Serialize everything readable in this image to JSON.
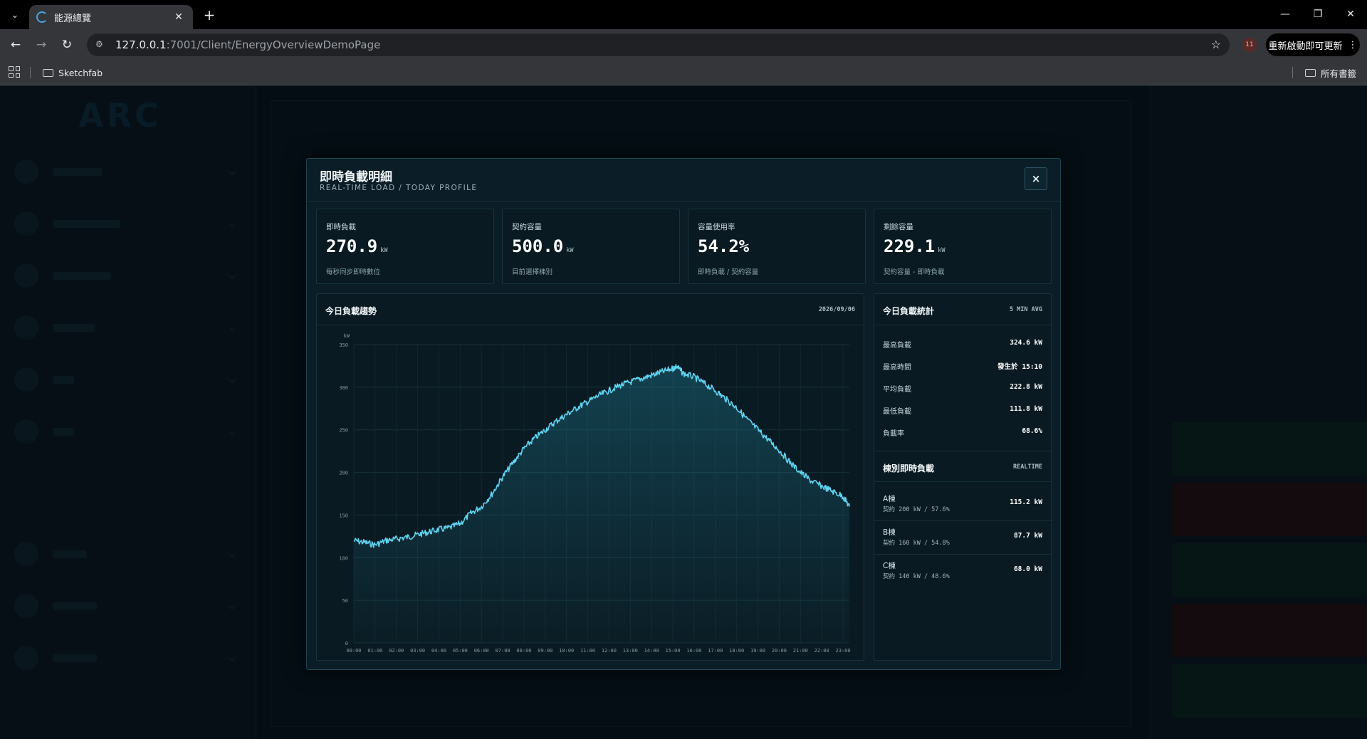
{
  "browser": {
    "tab_title": "能源總覽",
    "url_host": "127.0.0.1",
    "url_path": ":7001/Client/EnergyOverviewDemoPage",
    "update_button": "重新啟動即可更新",
    "extension_badge": "11",
    "bookmarks": [
      {
        "label": "Sketchfab"
      }
    ],
    "all_bookmarks": "所有書籤"
  },
  "modal": {
    "title": "即時負載明細",
    "subtitle": "REAL-TIME LOAD / TODAY PROFILE",
    "close_label": "×",
    "kpis": [
      {
        "label": "即時負載",
        "value": "270.9",
        "unit": "kW",
        "note": "每秒同步即時數位"
      },
      {
        "label": "契約容量",
        "value": "500.0",
        "unit": "kW",
        "note": "目前選擇棟別"
      },
      {
        "label": "容量使用率",
        "value": "54.2%",
        "unit": "",
        "note": "即時負載 / 契約容量"
      },
      {
        "label": "剩餘容量",
        "value": "229.1",
        "unit": "kW",
        "note": "契約容量 - 即時負載"
      }
    ],
    "trend_panel": {
      "title": "今日負載趨勢",
      "date": "2026/09/06"
    },
    "stats_panel": {
      "title": "今日負載統計",
      "tag": "5 MIN AVG",
      "rows": [
        {
          "label": "最高負載",
          "value": "324.6 kW"
        },
        {
          "label": "最高時間",
          "value": "發生於 15:10"
        },
        {
          "label": "平均負載",
          "value": "222.8 kW"
        },
        {
          "label": "最低負載",
          "value": "111.8 kW"
        },
        {
          "label": "負載率",
          "value": "68.6%"
        }
      ]
    },
    "building_panel": {
      "title": "棟別即時負載",
      "tag": "REALTIME",
      "rows": [
        {
          "name": "A棟",
          "contract": "契約 200 kW / 57.6%",
          "value": "115.2 kW"
        },
        {
          "name": "B棟",
          "contract": "契約 160 kW / 54.8%",
          "value": "87.7 kW"
        },
        {
          "name": "C棟",
          "contract": "契約 140 kW / 48.6%",
          "value": "68.0 kW"
        }
      ]
    }
  },
  "colors": {
    "accent": "#5fd4f0",
    "panel": "#0a1a22",
    "border": "#17343f"
  },
  "chart_data": {
    "type": "area",
    "ylabel": "kW",
    "ylim": [
      0,
      350
    ],
    "yticks": [
      0,
      50,
      100,
      150,
      200,
      250,
      300,
      350
    ],
    "xticks": [
      "00:00",
      "01:00",
      "02:00",
      "03:00",
      "04:00",
      "05:00",
      "06:00",
      "07:00",
      "08:00",
      "09:00",
      "10:00",
      "11:00",
      "12:00",
      "13:00",
      "14:00",
      "15:00",
      "16:00",
      "17:00",
      "18:00",
      "19:00",
      "20:00",
      "21:00",
      "22:00",
      "23:00"
    ],
    "x_unit": "hour",
    "grid": true,
    "series": [
      {
        "hours": [
          0,
          0.5,
          1,
          1.5,
          2,
          2.5,
          3,
          3.5,
          4,
          4.5,
          5,
          5.5,
          6,
          6.5,
          7,
          7.5,
          8,
          8.5,
          9,
          9.5,
          10,
          10.5,
          11,
          11.5,
          12,
          12.5,
          13,
          13.5,
          14,
          14.5,
          15,
          15.17,
          15.5,
          16,
          16.5,
          17,
          17.5,
          18,
          18.5,
          19,
          19.5,
          20,
          20.5,
          21,
          21.5,
          22,
          22.5,
          23,
          23.3
        ],
        "values": [
          120,
          118,
          115,
          120,
          122,
          124,
          127,
          130,
          133,
          135,
          140,
          152,
          160,
          175,
          195,
          212,
          228,
          240,
          250,
          260,
          268,
          276,
          283,
          290,
          296,
          302,
          306,
          310,
          314,
          318,
          322,
          324.6,
          316,
          312,
          304,
          296,
          286,
          276,
          262,
          250,
          238,
          226,
          212,
          200,
          190,
          184,
          178,
          172,
          160
        ]
      }
    ]
  }
}
